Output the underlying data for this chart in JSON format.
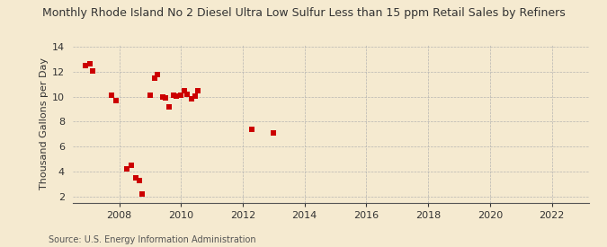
{
  "title": "Monthly Rhode Island No 2 Diesel Ultra Low Sulfur Less than 15 ppm Retail Sales by Refiners",
  "ylabel": "Thousand Gallons per Day",
  "source": "Source: U.S. Energy Information Administration",
  "background_color": "#f5ead0",
  "marker_color": "#cc0000",
  "xlim": [
    2006.5,
    2023.2
  ],
  "ylim": [
    1.5,
    14.2
  ],
  "yticks": [
    2,
    4,
    6,
    8,
    10,
    12,
    14
  ],
  "xticks": [
    2008,
    2010,
    2012,
    2014,
    2016,
    2018,
    2020,
    2022
  ],
  "data_x": [
    2006.9,
    2007.05,
    2007.15,
    2007.75,
    2007.9,
    2008.25,
    2008.4,
    2008.55,
    2008.65,
    2008.75,
    2009.0,
    2009.15,
    2009.25,
    2009.4,
    2009.5,
    2009.6,
    2009.75,
    2009.85,
    2010.0,
    2010.1,
    2010.2,
    2010.35,
    2010.45,
    2010.55,
    2012.3,
    2013.0
  ],
  "data_y": [
    12.5,
    12.65,
    12.05,
    10.1,
    9.7,
    4.2,
    4.5,
    3.5,
    3.3,
    2.15,
    10.1,
    11.5,
    11.75,
    10.0,
    9.9,
    9.2,
    10.15,
    10.05,
    10.15,
    10.5,
    10.2,
    9.85,
    10.05,
    10.5,
    7.4,
    7.1
  ],
  "title_fontsize": 9,
  "tick_fontsize": 8,
  "ylabel_fontsize": 8,
  "source_fontsize": 7
}
